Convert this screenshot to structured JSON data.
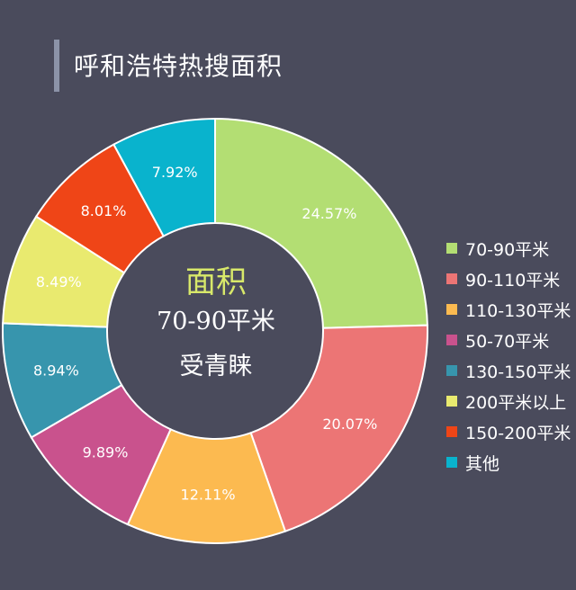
{
  "title": "呼和浩特热搜面积",
  "center": {
    "line1": "面积",
    "line2": "70-90平米",
    "line3": "受青睐"
  },
  "chart_data": {
    "type": "pie",
    "donut": true,
    "title": "呼和浩特热搜面积",
    "legend_position": "right",
    "slices": [
      {
        "label": "70-90平米",
        "value": 24.57,
        "display": "24.57%",
        "color": "#b3de73"
      },
      {
        "label": "90-110平米",
        "value": 20.07,
        "display": "20.07%",
        "color": "#ec7575"
      },
      {
        "label": "110-130平米",
        "value": 12.11,
        "display": "12.11%",
        "color": "#fcba50"
      },
      {
        "label": "50-70平米",
        "value": 9.89,
        "display": "9.89%",
        "color": "#c9528d"
      },
      {
        "label": "130-150平米",
        "value": 8.94,
        "display": "8.94%",
        "color": "#3795ad"
      },
      {
        "label": "200平米以上",
        "value": 8.49,
        "display": "8.49%",
        "color": "#e9ea6f"
      },
      {
        "label": "150-200平米",
        "value": 8.01,
        "display": "8.01%",
        "color": "#ef4517"
      },
      {
        "label": "其他",
        "value": 7.92,
        "display": "7.92%",
        "color": "#09b3cd"
      }
    ]
  }
}
